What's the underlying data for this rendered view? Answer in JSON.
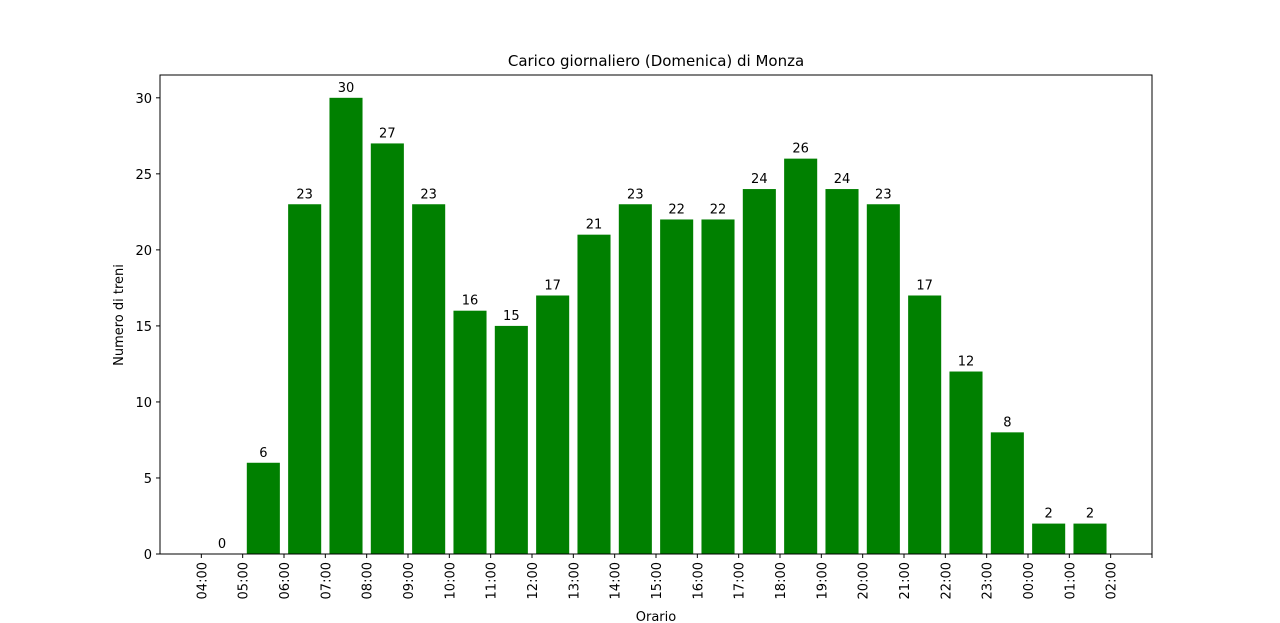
{
  "chart_data": {
    "type": "bar",
    "title": "Carico giornaliero (Domenica) di Monza",
    "x_label": "Orario",
    "y_label": "Numero di treni",
    "x": [
      0,
      1,
      2,
      3,
      4,
      5,
      6,
      7,
      8,
      9,
      10,
      11,
      12,
      13,
      14,
      15,
      16,
      17,
      18,
      19,
      20,
      21
    ],
    "values": [
      0,
      6,
      23,
      30,
      27,
      23,
      16,
      15,
      17,
      21,
      23,
      22,
      22,
      24,
      26,
      24,
      23,
      17,
      12,
      8,
      2,
      2
    ],
    "color": "#008000",
    "bar_width": 0.8,
    "xlim": [
      -1.5,
      22.5
    ],
    "xticks": [
      {
        "value": -0.5,
        "label": "04:00"
      },
      {
        "value": 0.5,
        "label": "05:00"
      },
      {
        "value": 1.5,
        "label": "06:00"
      },
      {
        "value": 2.5,
        "label": "07:00"
      },
      {
        "value": 3.5,
        "label": "08:00"
      },
      {
        "value": 4.5,
        "label": "09:00"
      },
      {
        "value": 5.5,
        "label": "10:00"
      },
      {
        "value": 6.5,
        "label": "11:00"
      },
      {
        "value": 7.5,
        "label": "12:00"
      },
      {
        "value": 8.5,
        "label": "13:00"
      },
      {
        "value": 9.5,
        "label": "14:00"
      },
      {
        "value": 10.5,
        "label": "15:00"
      },
      {
        "value": 11.5,
        "label": "16:00"
      },
      {
        "value": 12.5,
        "label": "17:00"
      },
      {
        "value": 13.5,
        "label": "18:00"
      },
      {
        "value": 14.5,
        "label": "19:00"
      },
      {
        "value": 15.5,
        "label": "20:00"
      },
      {
        "value": 16.5,
        "label": "21:00"
      },
      {
        "value": 17.5,
        "label": "22:00"
      },
      {
        "value": 18.5,
        "label": "23:00"
      },
      {
        "value": 19.5,
        "label": "00:00"
      },
      {
        "value": 20.5,
        "label": "01:00"
      },
      {
        "value": 21.5,
        "label": "02:00"
      },
      {
        "value": 22.5,
        "label": null
      }
    ],
    "ylim": [
      0,
      31.5
    ],
    "yticks": [
      0,
      5,
      10,
      15,
      20,
      25,
      30
    ]
  }
}
